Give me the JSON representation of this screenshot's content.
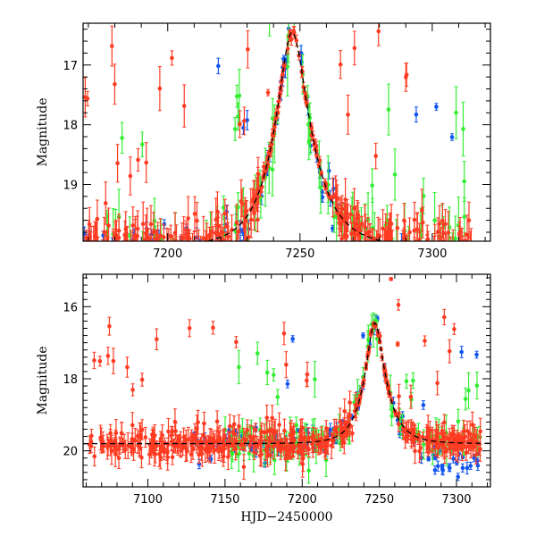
{
  "colors": {
    "red": "#ff3b22",
    "green": "#33ee33",
    "blue": "#1155ee",
    "axis": "#000000"
  },
  "chart_data": [
    {
      "type": "scatter",
      "panel": "top",
      "title": "",
      "xlabel": "",
      "ylabel": "Magnitude",
      "xlim": [
        7168,
        7322
      ],
      "ylim": [
        19.95,
        16.3
      ],
      "xticks": [
        7200,
        7250,
        7300
      ],
      "yticks": [
        17,
        18,
        19
      ],
      "series": [
        {
          "name": "red-band",
          "color": "#ff3b22"
        },
        {
          "name": "green-band",
          "color": "#33ee33"
        },
        {
          "name": "blue-band",
          "color": "#1155ee"
        }
      ],
      "model_curve": {
        "style": "dashed",
        "baseline_mag": 20.05,
        "peak_time": 7247,
        "peak_mag": 16.45,
        "rise_timescale": 13,
        "decay_timescale": 14
      },
      "peak_approx": {
        "x": 7247,
        "y": 16.5
      }
    },
    {
      "type": "scatter",
      "panel": "bottom",
      "title": "",
      "xlabel": "HJD−2450000",
      "ylabel": "Magnitude",
      "xlim": [
        7058,
        7322
      ],
      "ylim": [
        21.0,
        15.1
      ],
      "xticks": [
        7100,
        7150,
        7200,
        7250,
        7300
      ],
      "yticks": [
        16,
        18,
        20
      ],
      "series": [
        {
          "name": "red-band",
          "color": "#ff3b22"
        },
        {
          "name": "green-band",
          "color": "#33ee33"
        },
        {
          "name": "blue-band",
          "color": "#1155ee"
        }
      ],
      "model_curve": {
        "style": "dashed",
        "baseline_mag": 19.8,
        "peak_time": 7247,
        "peak_mag": 16.45,
        "rise_timescale": 13,
        "decay_timescale": 14
      },
      "peak_approx": {
        "x": 7247,
        "y": 16.5
      }
    }
  ]
}
